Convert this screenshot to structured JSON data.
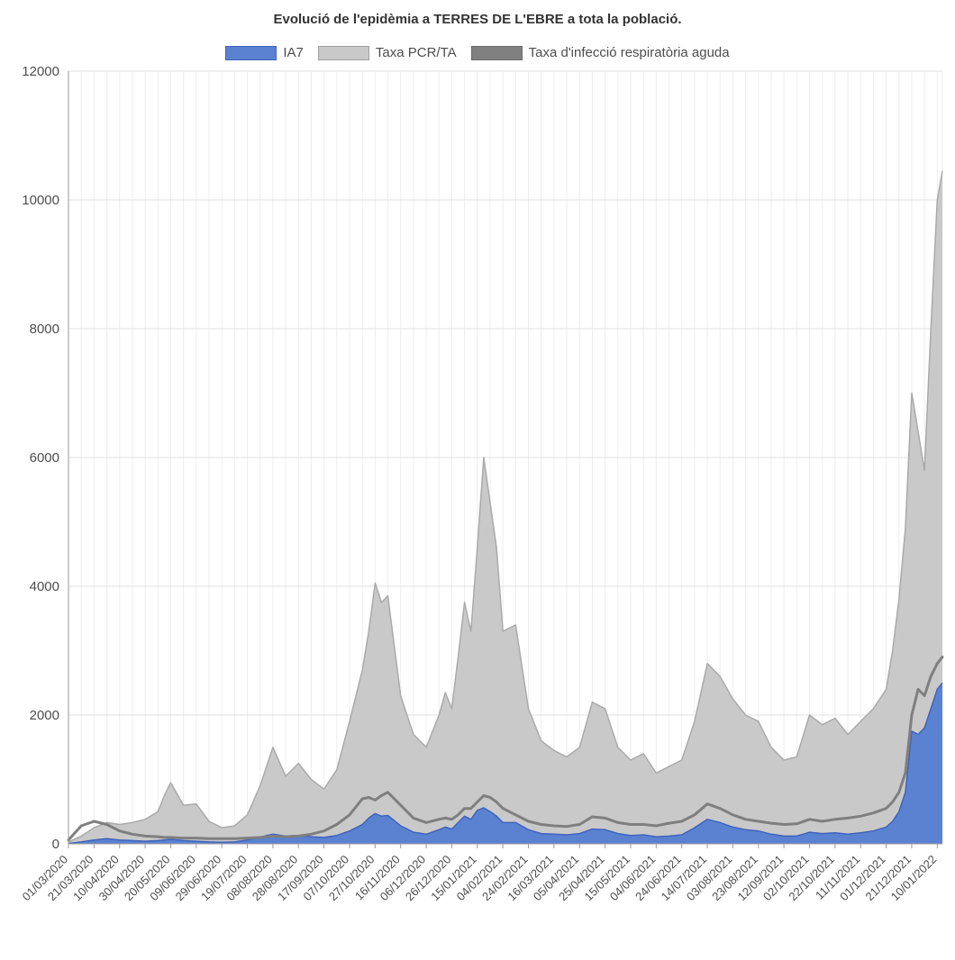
{
  "chart_data": {
    "type": "area",
    "title": "Evolució de l'epidèmia a TERRES DE L'EBRE a tota la població.",
    "xlabel": "",
    "ylabel": "",
    "ylim": [
      0,
      12000
    ],
    "y_ticks": [
      0,
      2000,
      4000,
      6000,
      8000,
      10000,
      12000
    ],
    "grid": true,
    "legend_position": "top",
    "x_tick_labels": [
      "01/03/2020",
      "21/03/2020",
      "10/04/2020",
      "30/04/2020",
      "20/05/2020",
      "09/06/2020",
      "29/06/2020",
      "19/07/2020",
      "08/08/2020",
      "28/08/2020",
      "17/09/2020",
      "07/10/2020",
      "27/10/2020",
      "16/11/2020",
      "06/12/2020",
      "26/12/2020",
      "15/01/2021",
      "04/02/2021",
      "24/02/2021",
      "16/03/2021",
      "05/04/2021",
      "25/04/2021",
      "15/05/2021",
      "04/06/2021",
      "24/06/2021",
      "14/07/2021",
      "03/08/2021",
      "23/08/2021",
      "12/09/2021",
      "02/10/2021",
      "22/10/2021",
      "11/11/2021",
      "01/12/2021",
      "21/12/2021",
      "10/01/2022"
    ],
    "dates": [
      "01/03/2020",
      "11/03/2020",
      "21/03/2020",
      "31/03/2020",
      "10/04/2020",
      "20/04/2020",
      "30/04/2020",
      "10/05/2020",
      "15/05/2020",
      "20/05/2020",
      "30/05/2020",
      "09/06/2020",
      "19/06/2020",
      "29/06/2020",
      "09/07/2020",
      "19/07/2020",
      "29/07/2020",
      "03/08/2020",
      "08/08/2020",
      "18/08/2020",
      "28/08/2020",
      "07/09/2020",
      "17/09/2020",
      "27/09/2020",
      "07/10/2020",
      "17/10/2020",
      "22/10/2020",
      "27/10/2020",
      "01/11/2020",
      "06/11/2020",
      "16/11/2020",
      "26/11/2020",
      "06/12/2020",
      "16/12/2020",
      "21/12/2020",
      "26/12/2020",
      "31/12/2020",
      "05/01/2021",
      "10/01/2021",
      "15/01/2021",
      "20/01/2021",
      "25/01/2021",
      "30/01/2021",
      "04/02/2021",
      "14/02/2021",
      "24/02/2021",
      "06/03/2021",
      "16/03/2021",
      "26/03/2021",
      "05/04/2021",
      "15/04/2021",
      "25/04/2021",
      "05/05/2021",
      "15/05/2021",
      "25/05/2021",
      "04/06/2021",
      "14/06/2021",
      "24/06/2021",
      "04/07/2021",
      "14/07/2021",
      "24/07/2021",
      "03/08/2021",
      "13/08/2021",
      "23/08/2021",
      "02/09/2021",
      "12/09/2021",
      "22/09/2021",
      "02/10/2021",
      "12/10/2021",
      "22/10/2021",
      "01/11/2021",
      "11/11/2021",
      "21/11/2021",
      "01/12/2021",
      "06/12/2021",
      "11/12/2021",
      "16/12/2021",
      "21/12/2021",
      "26/12/2021",
      "31/12/2021",
      "05/01/2022",
      "10/01/2022",
      "14/01/2022"
    ],
    "draw_order": [
      1,
      0,
      2
    ],
    "series": [
      {
        "name": "IA7",
        "type": "area",
        "fill": "#5b82d1",
        "stroke": "#3f63bd",
        "edge": "#3f63bd",
        "values": [
          5,
          30,
          60,
          80,
          60,
          50,
          40,
          50,
          60,
          70,
          50,
          40,
          30,
          25,
          30,
          60,
          100,
          130,
          150,
          120,
          130,
          110,
          100,
          130,
          200,
          300,
          400,
          470,
          430,
          440,
          280,
          180,
          150,
          220,
          260,
          230,
          330,
          430,
          380,
          520,
          560,
          500,
          430,
          330,
          330,
          220,
          160,
          150,
          140,
          160,
          230,
          220,
          160,
          130,
          140,
          110,
          120,
          140,
          250,
          380,
          330,
          260,
          220,
          200,
          150,
          120,
          120,
          180,
          160,
          170,
          150,
          170,
          200,
          260,
          350,
          500,
          800,
          1750,
          1700,
          1800,
          2100,
          2400,
          2500
        ]
      },
      {
        "name": "Taxa PCR/TA",
        "type": "area",
        "fill": "#c9c9c9",
        "stroke": "#aaaaaa",
        "edge": "#a0a0a0",
        "values": [
          30,
          120,
          250,
          330,
          300,
          330,
          380,
          500,
          750,
          950,
          600,
          620,
          350,
          250,
          280,
          450,
          900,
          1200,
          1500,
          1050,
          1250,
          1000,
          850,
          1150,
          1900,
          2700,
          3300,
          4050,
          3750,
          3850,
          2300,
          1700,
          1500,
          2000,
          2350,
          2100,
          2900,
          3750,
          3300,
          4600,
          6000,
          5300,
          4600,
          3300,
          3400,
          2100,
          1600,
          1450,
          1350,
          1500,
          2200,
          2100,
          1500,
          1300,
          1400,
          1100,
          1200,
          1300,
          1900,
          2800,
          2600,
          2250,
          2000,
          1900,
          1500,
          1300,
          1350,
          2000,
          1850,
          1950,
          1700,
          1900,
          2100,
          2400,
          3000,
          3800,
          4900,
          7000,
          6400,
          5800,
          8000,
          10000,
          10450
        ]
      },
      {
        "name": "Taxa d'infecció respiratòria aguda",
        "type": "line",
        "fill": "#808080",
        "stroke": "#7f7f7f",
        "edge": "#6b6b6b",
        "values": [
          60,
          280,
          350,
          300,
          200,
          150,
          120,
          110,
          100,
          100,
          90,
          90,
          80,
          80,
          80,
          90,
          100,
          110,
          120,
          110,
          120,
          150,
          200,
          300,
          450,
          700,
          720,
          680,
          750,
          800,
          600,
          400,
          330,
          380,
          400,
          380,
          450,
          550,
          550,
          650,
          750,
          720,
          650,
          550,
          450,
          350,
          300,
          280,
          270,
          300,
          420,
          400,
          330,
          300,
          300,
          280,
          320,
          350,
          450,
          620,
          550,
          450,
          380,
          350,
          320,
          300,
          310,
          380,
          350,
          380,
          400,
          430,
          480,
          550,
          650,
          800,
          1100,
          2000,
          2400,
          2300,
          2600,
          2800,
          2900
        ]
      }
    ]
  }
}
